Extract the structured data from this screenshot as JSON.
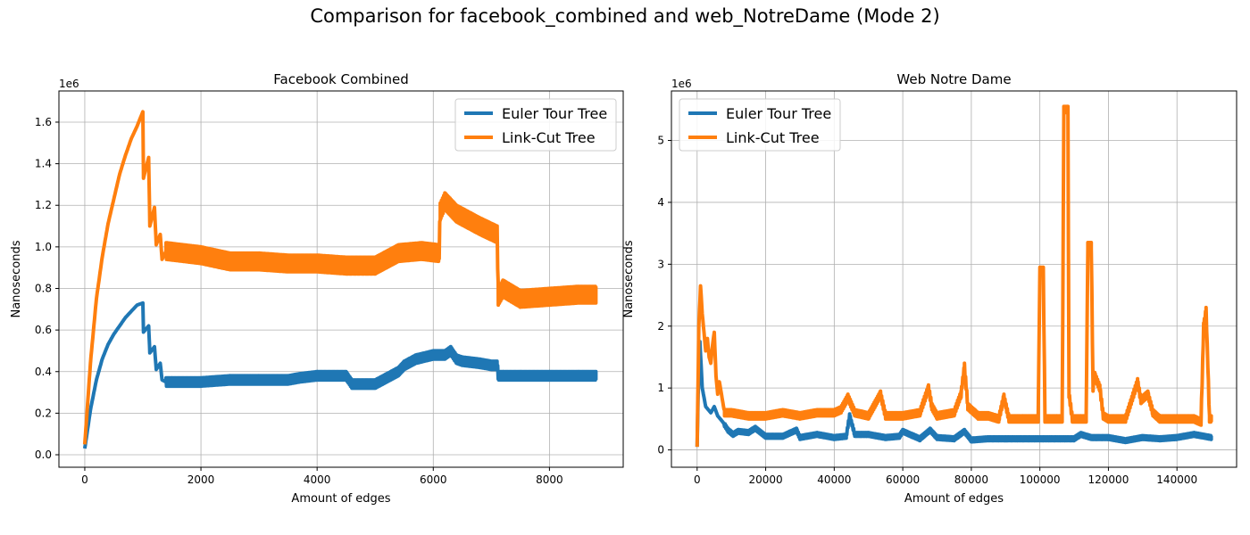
{
  "figure": {
    "suptitle": "Comparison for facebook_combined and web_NotreDame (Mode 2)"
  },
  "chart_data": [
    {
      "type": "line",
      "title": "Facebook Combined",
      "xlabel": "Amount of edges",
      "ylabel": "Nanoseconds",
      "y_offset_label": "1e6",
      "xlim": [
        -445,
        9270
      ],
      "ylim": [
        -0.06,
        1.75
      ],
      "x_ticks": [
        0,
        2000,
        4000,
        6000,
        8000
      ],
      "x_tick_labels": [
        "0",
        "2000",
        "4000",
        "6000",
        "8000"
      ],
      "y_ticks": [
        0.0,
        0.2,
        0.4,
        0.6,
        0.8,
        1.0,
        1.2,
        1.4,
        1.6
      ],
      "y_tick_labels": [
        "0.0",
        "0.2",
        "0.4",
        "0.6",
        "0.8",
        "1.0",
        "1.2",
        "1.4",
        "1.6"
      ],
      "grid": true,
      "legend_position": "top-right",
      "series": [
        {
          "name": "Euler Tour Tree",
          "color": "#1f77b4",
          "x": [
            0,
            100,
            200,
            300,
            400,
            500,
            600,
            700,
            800,
            900,
            1000,
            1010,
            1100,
            1120,
            1200,
            1230,
            1300,
            1330,
            1400,
            1500,
            2000,
            2500,
            3000,
            3500,
            3700,
            4000,
            4500,
            4600,
            5000,
            5200,
            5400,
            5500,
            5700,
            6000,
            6200,
            6300,
            6400,
            6500,
            6800,
            7000,
            7100,
            7120,
            7200,
            7500,
            8000,
            8500,
            8800
          ],
          "y": [
            0.03,
            0.22,
            0.36,
            0.46,
            0.53,
            0.58,
            0.62,
            0.66,
            0.69,
            0.72,
            0.73,
            0.59,
            0.62,
            0.49,
            0.52,
            0.41,
            0.44,
            0.36,
            0.35,
            0.35,
            0.35,
            0.36,
            0.36,
            0.36,
            0.37,
            0.38,
            0.38,
            0.34,
            0.34,
            0.37,
            0.4,
            0.43,
            0.46,
            0.48,
            0.48,
            0.5,
            0.46,
            0.45,
            0.44,
            0.43,
            0.43,
            0.38,
            0.38,
            0.38,
            0.38,
            0.38,
            0.38
          ],
          "oscillation_amplitude_from_x_1400": 0.02
        },
        {
          "name": "Link-Cut Tree",
          "color": "#ff7f0e",
          "x": [
            0,
            100,
            200,
            300,
            400,
            500,
            600,
            700,
            800,
            900,
            1000,
            1010,
            1100,
            1120,
            1200,
            1230,
            1300,
            1330,
            1400,
            2000,
            2500,
            3000,
            3500,
            4000,
            4500,
            5000,
            5400,
            5800,
            6100,
            6120,
            6200,
            6400,
            6800,
            7100,
            7120,
            7200,
            7500,
            8000,
            8500,
            8800
          ],
          "y": [
            0.05,
            0.45,
            0.75,
            0.95,
            1.11,
            1.23,
            1.35,
            1.44,
            1.52,
            1.58,
            1.65,
            1.33,
            1.43,
            1.1,
            1.19,
            1.01,
            1.06,
            0.94,
            0.98,
            0.96,
            0.93,
            0.93,
            0.92,
            0.92,
            0.91,
            0.91,
            0.97,
            0.98,
            0.97,
            1.17,
            1.22,
            1.16,
            1.1,
            1.06,
            0.76,
            0.8,
            0.75,
            0.76,
            0.77,
            0.77
          ],
          "oscillation_amplitude_from_x_1400": 0.04
        }
      ]
    },
    {
      "type": "line",
      "title": "Web Notre Dame",
      "xlabel": "Amount of edges",
      "ylabel": "Nanoseconds",
      "y_offset_label": "1e6",
      "xlim": [
        -7500,
        157400
      ],
      "ylim": [
        -0.28,
        5.8
      ],
      "x_ticks": [
        0,
        20000,
        40000,
        60000,
        80000,
        100000,
        120000,
        140000
      ],
      "x_tick_labels": [
        "0",
        "20000",
        "40000",
        "60000",
        "80000",
        "100000",
        "120000",
        "140000"
      ],
      "y_ticks": [
        0,
        1,
        2,
        3,
        4,
        5
      ],
      "y_tick_labels": [
        "0",
        "1",
        "2",
        "3",
        "4",
        "5"
      ],
      "grid": true,
      "legend_position": "top-left",
      "series": [
        {
          "name": "Euler Tour Tree",
          "color": "#1f77b4",
          "x": [
            0,
            300,
            800,
            1500,
            2500,
            4000,
            5000,
            6000,
            7500,
            9000,
            10500,
            12000,
            15000,
            17000,
            20000,
            25000,
            29000,
            30000,
            35000,
            40000,
            43500,
            44500,
            46000,
            50000,
            55000,
            59000,
            60000,
            65000,
            68000,
            70000,
            75000,
            78000,
            80000,
            85000,
            90000,
            100000,
            110000,
            112000,
            115000,
            120000,
            125000,
            130000,
            135000,
            140000,
            145000,
            150000
          ],
          "y": [
            0.05,
            0.9,
            1.75,
            1.0,
            0.7,
            0.6,
            0.7,
            0.55,
            0.45,
            0.32,
            0.25,
            0.3,
            0.28,
            0.35,
            0.22,
            0.22,
            0.32,
            0.2,
            0.25,
            0.2,
            0.22,
            0.55,
            0.25,
            0.25,
            0.2,
            0.22,
            0.3,
            0.18,
            0.32,
            0.2,
            0.18,
            0.3,
            0.16,
            0.18,
            0.18,
            0.18,
            0.18,
            0.25,
            0.2,
            0.2,
            0.15,
            0.2,
            0.18,
            0.2,
            0.25,
            0.2
          ],
          "oscillation_amplitude_from_x_8000": 0.03
        },
        {
          "name": "Link-Cut Tree",
          "color": "#ff7f0e",
          "x": [
            0,
            500,
            1000,
            1500,
            2000,
            2500,
            3000,
            3500,
            4000,
            4500,
            5000,
            5500,
            6000,
            6500,
            8000,
            10000,
            15000,
            20000,
            25000,
            30000,
            35000,
            40000,
            42000,
            44000,
            46000,
            50000,
            53500,
            55000,
            60000,
            65000,
            67500,
            68500,
            70000,
            75000,
            77000,
            78000,
            79000,
            82000,
            85000,
            88000,
            89500,
            91000,
            95000,
            99500,
            100000,
            101000,
            101500,
            105000,
            106500,
            107000,
            108200,
            108500,
            109500,
            112000,
            113500,
            114000,
            115000,
            115500,
            116000,
            117500,
            118500,
            120000,
            125000,
            128500,
            129500,
            131500,
            133000,
            135000,
            140000,
            145000,
            147000,
            147800,
            148500,
            149500,
            150000
          ],
          "y": [
            0.05,
            2.0,
            2.65,
            2.2,
            1.9,
            1.6,
            1.8,
            1.5,
            1.4,
            1.7,
            1.9,
            1.2,
            0.9,
            1.1,
            0.6,
            0.6,
            0.55,
            0.55,
            0.6,
            0.55,
            0.6,
            0.6,
            0.65,
            0.85,
            0.6,
            0.55,
            0.9,
            0.55,
            0.55,
            0.6,
            1.0,
            0.7,
            0.55,
            0.6,
            0.9,
            1.35,
            0.7,
            0.55,
            0.55,
            0.5,
            0.85,
            0.5,
            0.5,
            0.5,
            2.9,
            2.9,
            0.5,
            0.5,
            0.5,
            5.5,
            5.5,
            0.9,
            0.5,
            0.5,
            0.5,
            3.3,
            3.3,
            1.0,
            1.2,
            1.0,
            0.55,
            0.5,
            0.5,
            1.1,
            0.8,
            0.9,
            0.6,
            0.5,
            0.5,
            0.5,
            0.45,
            2.0,
            2.25,
            0.5,
            0.5
          ],
          "oscillation_amplitude_from_x_8000": 0.05
        }
      ]
    }
  ]
}
